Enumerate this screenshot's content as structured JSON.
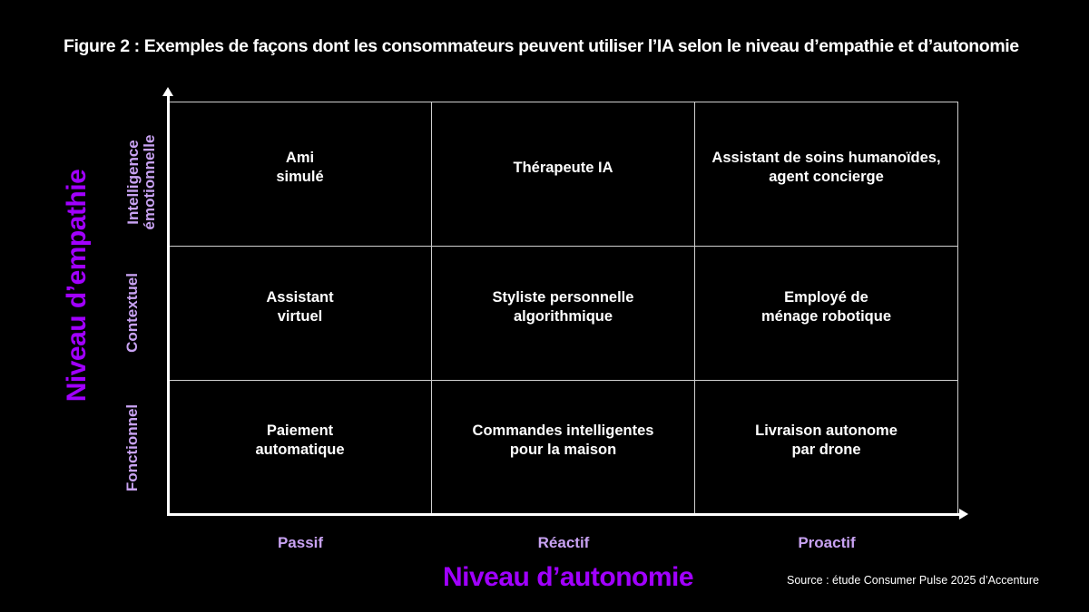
{
  "title": "Figure 2 : Exemples de façons dont les consommateurs peuvent utiliser l’IA selon le niveau d’empathie et d’autonomie",
  "y_axis": {
    "title": "Niveau d’empathie",
    "levels": [
      "Intelligence\némotionnelle",
      "Contextuel",
      "Fonctionnel"
    ]
  },
  "x_axis": {
    "title": "Niveau d’autonomie",
    "levels": [
      "Passif",
      "Réactif",
      "Proactif"
    ]
  },
  "cells": [
    [
      "Ami\nsimulé",
      "Thérapeute IA",
      "Assistant de soins humanoïdes,\nagent concierge"
    ],
    [
      "Assistant\nvirtuel",
      "Styliste personnelle\nalgorithmique",
      "Employé de\nménage robotique"
    ],
    [
      "Paiement\nautomatique",
      "Commandes intelligentes\npour la maison",
      "Livraison autonome\npar drone"
    ]
  ],
  "source": "Source : étude Consumer Pulse 2025 d’Accenture",
  "colors": {
    "accent": "#a100ff",
    "label": "#c8a2f2",
    "background": "#000000"
  }
}
